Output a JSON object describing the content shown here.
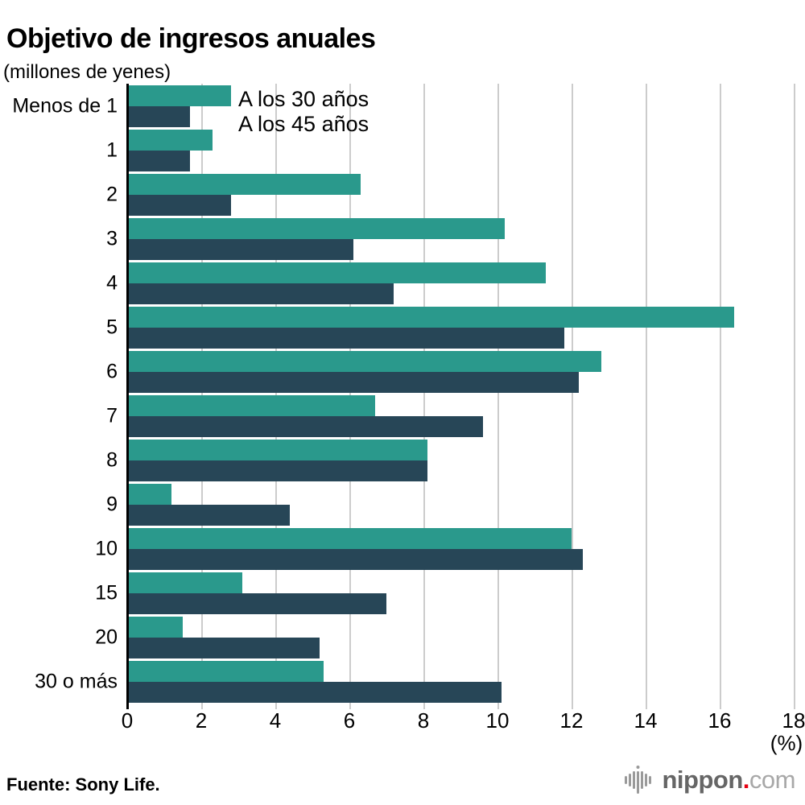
{
  "title": "Objetivo de ingresos anuales",
  "unit_label": "(millones de yenes)",
  "chart_data": {
    "type": "bar",
    "orientation": "horizontal",
    "title": "Objetivo de ingresos anuales",
    "categories": [
      "Menos de 1",
      "1",
      "2",
      "3",
      "4",
      "5",
      "6",
      "7",
      "8",
      "9",
      "10",
      "15",
      "20",
      "30 o más"
    ],
    "series": [
      {
        "name": "A los 30 años",
        "color": "#2a998c",
        "values": [
          2.8,
          2.3,
          6.3,
          10.2,
          11.3,
          16.4,
          12.8,
          6.7,
          8.1,
          1.2,
          12.0,
          3.1,
          1.5,
          5.3
        ]
      },
      {
        "name": "A los 45 años",
        "color": "#274657",
        "values": [
          1.7,
          1.7,
          2.8,
          6.1,
          7.2,
          11.8,
          12.2,
          9.6,
          8.1,
          4.4,
          12.3,
          7.0,
          5.2,
          10.1
        ]
      }
    ],
    "xlabel": "(%)",
    "ylabel": "(millones de yenes)",
    "xlim": [
      0,
      18
    ],
    "xticks": [
      0,
      2,
      4,
      6,
      8,
      10,
      12,
      14,
      16,
      18
    ],
    "grid": true,
    "gridline_color": "#cccccc",
    "legend_position": "inline-top-left"
  },
  "footer": {
    "source": "Fuente: Sony Life.",
    "logo": {
      "nippon": "nippon",
      "dot": ".",
      "com": "com"
    }
  }
}
